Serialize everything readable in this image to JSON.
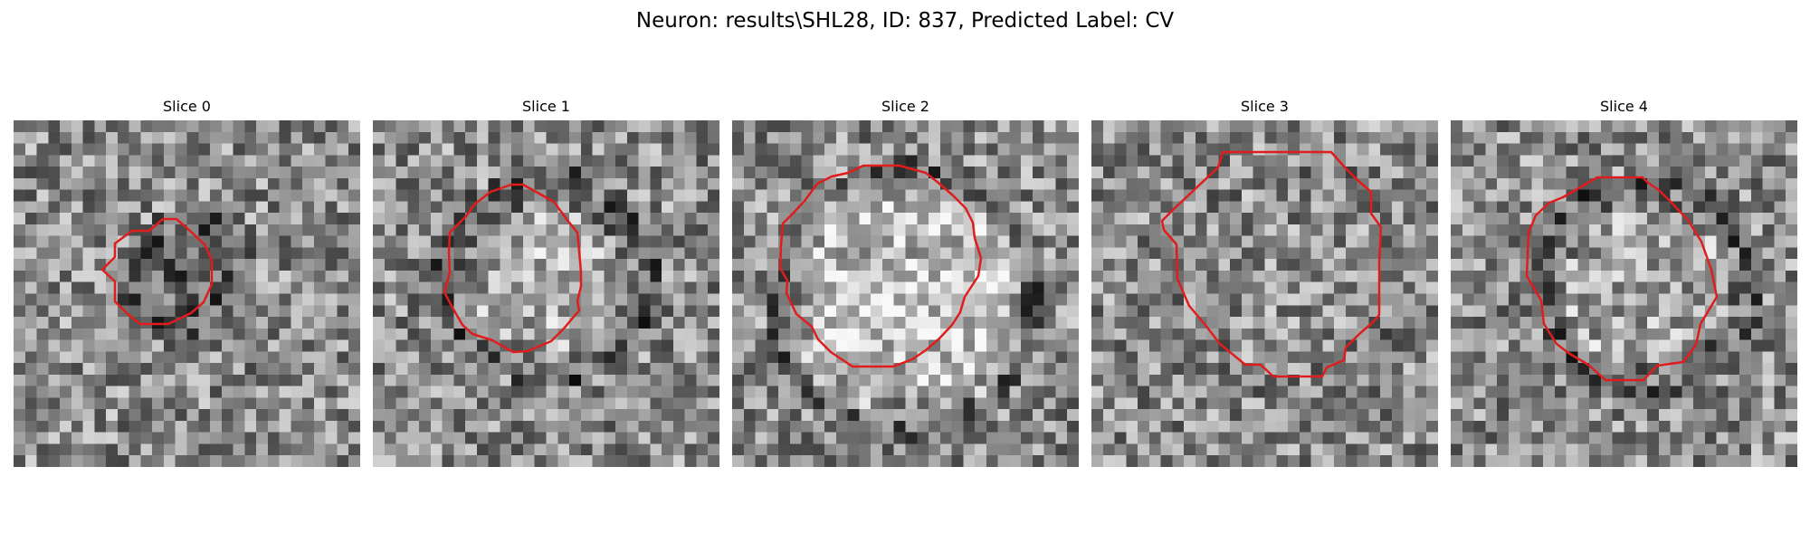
{
  "figure": {
    "title": "Neuron: results\\SHL28, ID: 837, Predicted Label: CV"
  },
  "panels": [
    {
      "title": "Slice 0"
    },
    {
      "title": "Slice 1"
    },
    {
      "title": "Slice 2"
    },
    {
      "title": "Slice 3"
    },
    {
      "title": "Slice 4"
    }
  ],
  "colors": {
    "contour": "#e11c1c",
    "colormap": "gray"
  }
}
